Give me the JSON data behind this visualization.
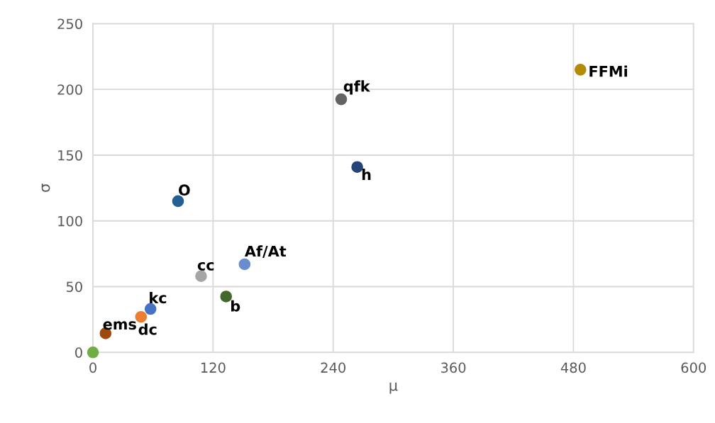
{
  "chart_data": {
    "type": "scatter",
    "xlabel": "μ",
    "ylabel": "σ",
    "xlim": [
      0,
      600
    ],
    "xticks": [
      0,
      120,
      240,
      360,
      480,
      600
    ],
    "ylim": [
      0,
      250
    ],
    "yticks": [
      0,
      50,
      100,
      150,
      200,
      250
    ],
    "grid": true,
    "marker": "circle",
    "series": [
      {
        "color": "#70ad47",
        "x": [
          0
        ],
        "values": [
          0
        ]
      },
      {
        "name": "ems",
        "color": "#9e480e",
        "x": [
          12.6
        ],
        "values": [
          14.5
        ]
      },
      {
        "name": "dc",
        "color": "#ed7d31",
        "x": [
          48
        ],
        "values": [
          27
        ]
      },
      {
        "name": "kc",
        "color": "#4472c4",
        "x": [
          57.5
        ],
        "values": [
          33
        ]
      },
      {
        "name": "O",
        "color": "#255e91",
        "x": [
          85
        ],
        "values": [
          115
        ]
      },
      {
        "name": "cc",
        "color": "#a5a5a5",
        "x": [
          108
        ],
        "values": [
          58
        ]
      },
      {
        "name": "b",
        "color": "#43682b",
        "x": [
          133
        ],
        "values": [
          42.5
        ]
      },
      {
        "name": "Af/At",
        "color": "#698ed0",
        "x": [
          151.5
        ],
        "values": [
          67
        ]
      },
      {
        "name": "qfk",
        "color": "#636363",
        "x": [
          248
        ],
        "values": [
          192.5
        ]
      },
      {
        "name": "h",
        "color": "#264478",
        "x": [
          264
        ],
        "values": [
          141
        ]
      },
      {
        "name": "FFMi",
        "color": "#b38a00",
        "x": [
          487
        ],
        "values": [
          215
        ]
      }
    ]
  }
}
